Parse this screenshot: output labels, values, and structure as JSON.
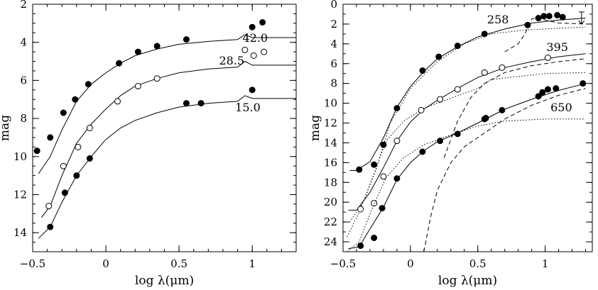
{
  "chart_data": [
    {
      "type": "scatter",
      "panel": "left",
      "xlabel": "log λ(μm)",
      "ylabel": "mag",
      "xlim": [
        -0.5,
        1.3
      ],
      "ylim": [
        15,
        2
      ],
      "y_inverted": true,
      "xticks": [
        -0.5,
        0,
        0.5,
        1
      ],
      "xtick_labels": [
        "−0.5",
        "0",
        "0.5",
        "1"
      ],
      "yticks": [
        2,
        4,
        6,
        8,
        10,
        12,
        14
      ],
      "yminor_step": 0.5,
      "xminor_step": 0.1,
      "series": [
        {
          "label": "42.0",
          "label_pos": [
            1.02,
            3.75
          ],
          "marker": "filled",
          "points": [
            [
              -0.47,
              9.7
            ],
            [
              -0.38,
              9.0
            ],
            [
              -0.29,
              7.7
            ],
            [
              -0.21,
              7.0
            ],
            [
              -0.12,
              6.2
            ],
            [
              0.09,
              5.1
            ],
            [
              0.22,
              4.5
            ],
            [
              0.35,
              4.2
            ],
            [
              0.55,
              3.85
            ],
            [
              1.0,
              3.2
            ],
            [
              1.07,
              2.95
            ]
          ],
          "model": [
            [
              -0.46,
              10.9
            ],
            [
              -0.38,
              10.0
            ],
            [
              -0.3,
              8.6
            ],
            [
              -0.2,
              7.1
            ],
            [
              -0.1,
              6.2
            ],
            [
              0.0,
              5.6
            ],
            [
              0.1,
              5.1
            ],
            [
              0.2,
              4.7
            ],
            [
              0.35,
              4.35
            ],
            [
              0.5,
              4.1
            ],
            [
              0.7,
              3.95
            ],
            [
              0.9,
              3.85
            ],
            [
              0.95,
              3.6
            ],
            [
              1.0,
              3.75
            ],
            [
              1.3,
              3.75
            ]
          ]
        },
        {
          "label": "28.5",
          "label_pos": [
            0.86,
            4.95
          ],
          "marker": "open",
          "points": [
            [
              -0.39,
              12.6
            ],
            [
              -0.29,
              10.5
            ],
            [
              -0.19,
              9.5
            ],
            [
              -0.11,
              8.5
            ],
            [
              0.08,
              7.1
            ],
            [
              0.22,
              6.3
            ],
            [
              0.35,
              5.9
            ],
            [
              0.95,
              4.4
            ],
            [
              1.01,
              4.7
            ],
            [
              1.08,
              4.5
            ]
          ],
          "model": [
            [
              -0.44,
              13.2
            ],
            [
              -0.38,
              12.6
            ],
            [
              -0.3,
              11.0
            ],
            [
              -0.2,
              9.3
            ],
            [
              -0.1,
              8.3
            ],
            [
              0.0,
              7.5
            ],
            [
              0.1,
              6.8
            ],
            [
              0.2,
              6.3
            ],
            [
              0.35,
              5.9
            ],
            [
              0.5,
              5.6
            ],
            [
              0.7,
              5.4
            ],
            [
              0.9,
              5.3
            ],
            [
              0.95,
              5.0
            ],
            [
              1.0,
              5.2
            ],
            [
              1.3,
              5.2
            ]
          ]
        },
        {
          "label": "15.0",
          "label_pos": [
            0.97,
            7.4
          ],
          "marker": "filled",
          "points": [
            [
              -0.38,
              13.7
            ],
            [
              -0.28,
              11.9
            ],
            [
              -0.2,
              11.0
            ],
            [
              -0.11,
              10.1
            ],
            [
              0.55,
              7.2
            ],
            [
              0.65,
              7.2
            ],
            [
              1.0,
              6.5
            ]
          ],
          "model": [
            [
              -0.46,
              14.3
            ],
            [
              -0.38,
              13.7
            ],
            [
              -0.3,
              12.4
            ],
            [
              -0.2,
              11.0
            ],
            [
              -0.1,
              10.0
            ],
            [
              0.0,
              9.1
            ],
            [
              0.1,
              8.5
            ],
            [
              0.2,
              8.1
            ],
            [
              0.35,
              7.7
            ],
            [
              0.5,
              7.4
            ],
            [
              0.7,
              7.2
            ],
            [
              0.9,
              7.1
            ],
            [
              0.95,
              6.8
            ],
            [
              1.0,
              6.95
            ],
            [
              1.3,
              6.95
            ]
          ]
        }
      ]
    },
    {
      "type": "scatter",
      "panel": "right",
      "xlabel": "log λ(μm)",
      "ylabel": "mag",
      "xlim": [
        -0.5,
        1.35
      ],
      "ylim": [
        25,
        0
      ],
      "y_inverted": true,
      "xticks": [
        -0.5,
        0,
        0.5,
        1
      ],
      "xtick_labels": [
        "−0.5",
        "0",
        "0.5",
        "1"
      ],
      "yticks": [
        0,
        2,
        4,
        6,
        8,
        10,
        12,
        14,
        16,
        18,
        20,
        22,
        24
      ],
      "yminor_step": 1,
      "xminor_step": 0.1,
      "upper_limit": [
        1.27,
        1.5
      ],
      "series": [
        {
          "label": "258",
          "label_pos": [
            0.65,
            1.5
          ],
          "marker": "filled",
          "points": [
            [
              -0.38,
              16.7
            ],
            [
              -0.27,
              16.2
            ],
            [
              -0.2,
              14.2
            ],
            [
              -0.1,
              10.5
            ],
            [
              0.09,
              6.7
            ],
            [
              0.21,
              5.3
            ],
            [
              0.35,
              4.2
            ],
            [
              0.55,
              3.0
            ],
            [
              0.87,
              2.1
            ],
            [
              0.95,
              1.4
            ],
            [
              0.99,
              1.2
            ],
            [
              1.03,
              1.2
            ],
            [
              1.09,
              1.1
            ],
            [
              1.13,
              1.3
            ]
          ],
          "model": [
            [
              -0.45,
              16.8
            ],
            [
              -0.4,
              16.8
            ],
            [
              -0.3,
              15.9
            ],
            [
              -0.2,
              13.5
            ],
            [
              -0.1,
              10.4
            ],
            [
              0.0,
              8.3
            ],
            [
              0.1,
              6.8
            ],
            [
              0.2,
              5.5
            ],
            [
              0.35,
              4.3
            ],
            [
              0.5,
              3.3
            ],
            [
              0.7,
              2.5
            ],
            [
              0.9,
              1.9
            ],
            [
              1.1,
              1.6
            ],
            [
              1.3,
              1.4
            ]
          ],
          "dotted": [
            [
              -0.45,
              22.0
            ],
            [
              -0.35,
              20.0
            ],
            [
              -0.25,
              16.5
            ],
            [
              -0.15,
              12.0
            ],
            [
              0.0,
              8.5
            ],
            [
              0.2,
              5.8
            ],
            [
              0.4,
              4.0
            ],
            [
              0.6,
              3.0
            ],
            [
              0.85,
              2.6
            ],
            [
              1.0,
              2.5
            ],
            [
              1.3,
              2.3
            ]
          ],
          "dashed": [
            [
              0.7,
              4.8
            ],
            [
              0.8,
              4.0
            ],
            [
              0.85,
              3.0
            ],
            [
              0.9,
              1.5
            ],
            [
              0.95,
              1.3
            ],
            [
              1.0,
              1.6
            ],
            [
              1.1,
              1.9
            ],
            [
              1.3,
              2.0
            ]
          ]
        },
        {
          "label": "395",
          "label_pos": [
            1.09,
            4.3
          ],
          "marker": "open",
          "points": [
            [
              -0.37,
              20.7
            ],
            [
              -0.27,
              20.1
            ],
            [
              -0.2,
              17.4
            ],
            [
              -0.1,
              13.8
            ],
            [
              0.08,
              10.7
            ],
            [
              0.22,
              9.6
            ],
            [
              0.35,
              8.6
            ],
            [
              0.55,
              6.9
            ],
            [
              0.68,
              6.4
            ],
            [
              1.02,
              5.4
            ]
          ],
          "model": [
            [
              -0.46,
              20.8
            ],
            [
              -0.4,
              20.8
            ],
            [
              -0.3,
              19.0
            ],
            [
              -0.2,
              16.5
            ],
            [
              -0.1,
              13.8
            ],
            [
              0.0,
              11.9
            ],
            [
              0.1,
              10.6
            ],
            [
              0.2,
              9.7
            ],
            [
              0.35,
              8.5
            ],
            [
              0.5,
              7.4
            ],
            [
              0.7,
              6.4
            ],
            [
              0.9,
              5.8
            ],
            [
              1.1,
              5.3
            ],
            [
              1.3,
              5.0
            ]
          ],
          "dotted": [
            [
              -0.47,
              23.5
            ],
            [
              -0.38,
              21.0
            ],
            [
              -0.28,
              17.5
            ],
            [
              -0.18,
              13.8
            ],
            [
              -0.05,
              11.8
            ],
            [
              0.1,
              10.5
            ],
            [
              0.3,
              9.5
            ],
            [
              0.5,
              8.5
            ],
            [
              0.6,
              7.6
            ],
            [
              0.8,
              7.3
            ],
            [
              1.0,
              7.0
            ],
            [
              1.3,
              6.9
            ]
          ],
          "dashed": [
            [
              0.25,
              15.5
            ],
            [
              0.35,
              11.8
            ],
            [
              0.45,
              9.4
            ],
            [
              0.55,
              8.0
            ],
            [
              0.7,
              6.9
            ],
            [
              0.9,
              6.2
            ],
            [
              1.1,
              5.8
            ],
            [
              1.3,
              5.5
            ]
          ]
        },
        {
          "label": "650",
          "label_pos": [
            1.12,
            10.4
          ],
          "marker": "filled",
          "points": [
            [
              -0.37,
              24.4
            ],
            [
              -0.27,
              23.6
            ],
            [
              -0.21,
              20.6
            ],
            [
              -0.1,
              17.6
            ],
            [
              0.09,
              14.9
            ],
            [
              0.22,
              13.8
            ],
            [
              0.35,
              13.1
            ],
            [
              0.55,
              11.6
            ],
            [
              0.56,
              11.5
            ],
            [
              0.68,
              10.7
            ],
            [
              0.95,
              9.3
            ],
            [
              0.98,
              8.9
            ],
            [
              1.02,
              8.6
            ],
            [
              1.08,
              8.5
            ],
            [
              1.28,
              8.0
            ]
          ],
          "model": [
            [
              -0.46,
              24.7
            ],
            [
              -0.38,
              24.5
            ],
            [
              -0.3,
              22.7
            ],
            [
              -0.2,
              20.5
            ],
            [
              -0.1,
              17.7
            ],
            [
              0.0,
              16.0
            ],
            [
              0.1,
              14.8
            ],
            [
              0.2,
              13.9
            ],
            [
              0.35,
              13.0
            ],
            [
              0.5,
              12.0
            ],
            [
              0.7,
              10.6
            ],
            [
              0.9,
              9.6
            ],
            [
              1.1,
              8.7
            ],
            [
              1.3,
              8.0
            ]
          ],
          "dotted": [
            [
              -0.47,
              25.0
            ],
            [
              -0.38,
              24.0
            ],
            [
              -0.28,
              20.5
            ],
            [
              -0.18,
              17.5
            ],
            [
              -0.05,
              15.5
            ],
            [
              0.1,
              14.2
            ],
            [
              0.3,
              13.2
            ],
            [
              0.5,
              12.3
            ],
            [
              0.7,
              11.8
            ],
            [
              1.0,
              11.6
            ],
            [
              1.3,
              11.6
            ]
          ],
          "dashed": [
            [
              0.1,
              25.0
            ],
            [
              0.15,
              21.5
            ],
            [
              0.2,
              18.8
            ],
            [
              0.3,
              16.0
            ],
            [
              0.4,
              14.4
            ],
            [
              0.55,
              13.0
            ],
            [
              0.7,
              11.6
            ],
            [
              0.9,
              10.2
            ],
            [
              1.1,
              9.2
            ],
            [
              1.3,
              8.5
            ]
          ]
        }
      ]
    }
  ]
}
